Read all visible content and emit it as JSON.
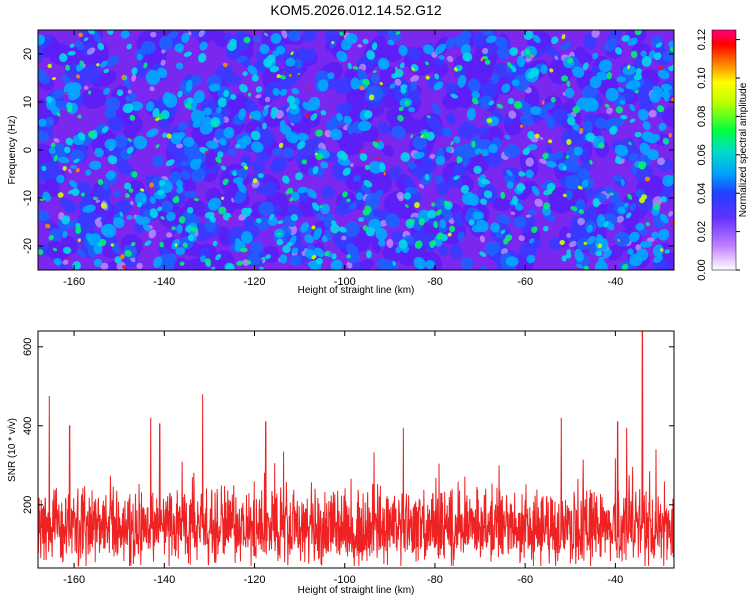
{
  "chart_data": [
    {
      "type": "heatmap",
      "title": "KOM5.2026.012.14.52.G12",
      "xlabel": "Height of straight line (km)",
      "ylabel": "Frequency (Hz)",
      "xlim": [
        -168,
        -27
      ],
      "ylim": [
        -25,
        25
      ],
      "x_ticks": [
        -160,
        -140,
        -120,
        -100,
        -80,
        -60,
        -40
      ],
      "y_ticks": [
        -20,
        -10,
        0,
        10,
        20
      ],
      "colorbar": {
        "label": "Normalized spectral amplitude",
        "range": [
          0,
          0.125
        ],
        "ticks": [
          "0.00",
          "0.02",
          "0.04",
          "0.06",
          "0.08",
          "0.10",
          "0.12"
        ],
        "tick_values": [
          0,
          0.02,
          0.04,
          0.06,
          0.08,
          0.1,
          0.12
        ],
        "colors": [
          "#ffffff",
          "#a040ff",
          "#3020ff",
          "#00b0ff",
          "#00ff60",
          "#ffff00",
          "#ff8000",
          "#ff0000",
          "#ff0080"
        ]
      },
      "background_color": "#7a28f0"
    },
    {
      "type": "line",
      "xlabel": "Height of straight line (km)",
      "ylabel": "SNR (10 * v/v)",
      "xlim": [
        -168,
        -27
      ],
      "ylim": [
        40,
        640
      ],
      "x_ticks": [
        -160,
        -140,
        -120,
        -100,
        -80,
        -60,
        -40
      ],
      "y_ticks": [
        200,
        400,
        600
      ],
      "series": [
        {
          "name": "SNR",
          "color": "#ee2222",
          "baseline": 140,
          "peaks": [
            {
              "x": -165.5,
              "y": 475
            },
            {
              "x": -161.0,
              "y": 400
            },
            {
              "x": -143.0,
              "y": 420
            },
            {
              "x": -141.0,
              "y": 405
            },
            {
              "x": -131.5,
              "y": 480
            },
            {
              "x": -117.5,
              "y": 410
            },
            {
              "x": -87.0,
              "y": 395
            },
            {
              "x": -52.0,
              "y": 420
            },
            {
              "x": -39.5,
              "y": 410
            },
            {
              "x": -37.5,
              "y": 395
            },
            {
              "x": -34.0,
              "y": 640
            },
            {
              "x": -31.0,
              "y": 340
            }
          ]
        }
      ]
    }
  ]
}
